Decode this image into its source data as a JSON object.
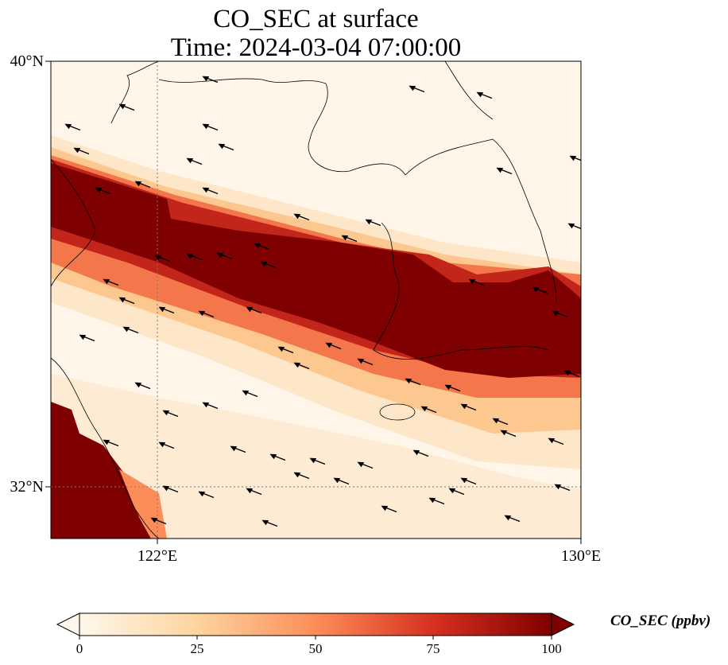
{
  "title": {
    "line1": "CO_SEC at surface",
    "line2": "Time: 2024-03-04 07:00:00"
  },
  "axes": {
    "lat_ticks": [
      "40°N",
      "32°N"
    ],
    "lon_ticks": [
      "122°E",
      "130°E"
    ],
    "lat_range": [
      31,
      40
    ],
    "lon_range": [
      120,
      130
    ],
    "gridlines": "dotted at 122°E and 32°N"
  },
  "colorbar": {
    "label": "CO_SEC (ppbv)",
    "ticks": [
      "0",
      "25",
      "50",
      "75",
      "100"
    ],
    "range": [
      0,
      100
    ],
    "colormap": "OrRd",
    "colors": [
      "#fff7ec",
      "#fdd49e",
      "#fc8d59",
      "#d7301f",
      "#7f0000"
    ]
  },
  "map": {
    "field": "CO_SEC concentration band oriented WNW-ESE",
    "wind_vectors": "black arrows, mostly pointing west-northwest"
  }
}
